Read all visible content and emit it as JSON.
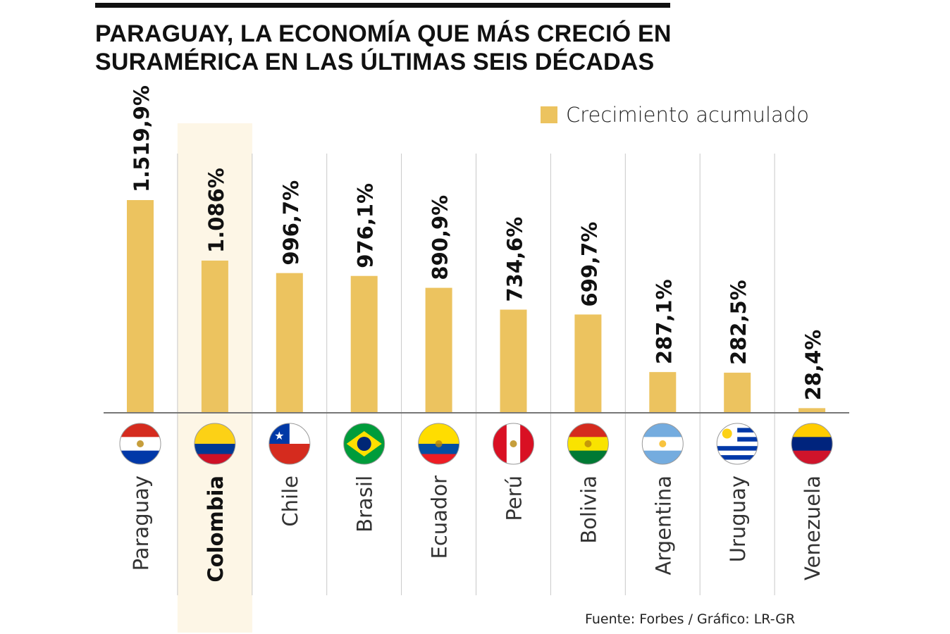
{
  "title_lines": [
    "PARAGUAY, LA ECONOMÍA QUE MÁS CRECIÓ EN",
    "SURAMÉRICA EN LAS ÚLTIMAS SEIS DÉCADAS"
  ],
  "source": "Fuente: Forbes / Gráfico: LR-GR",
  "colors": {
    "bar": "#ecc35f",
    "highlight": "#fdf6e6",
    "divider": "#c8c8c8",
    "axis": "#777777"
  },
  "chart_data": {
    "type": "bar",
    "title": "PARAGUAY, LA ECONOMÍA QUE MÁS CRECIÓ EN SURAMÉRICA EN LAS ÚLTIMAS SEIS DÉCADAS",
    "xlabel": "",
    "ylabel": "",
    "ylim": [
      0,
      1520
    ],
    "grid": false,
    "legend": {
      "entries": [
        "Crecimiento acumulado"
      ],
      "placement": "top-right"
    },
    "highlight": "Colombia",
    "categories": [
      "Paraguay",
      "Colombia",
      "Chile",
      "Brasil",
      "Ecuador",
      "Perú",
      "Bolivia",
      "Argentina",
      "Uruguay",
      "Venezuela"
    ],
    "series": [
      {
        "name": "Crecimiento acumulado",
        "values": [
          1519.9,
          1086,
          996.7,
          976.1,
          890.9,
          734.6,
          699.7,
          287.1,
          282.5,
          28.4
        ],
        "labels": [
          "1.519,9%",
          "1.086%",
          "996,7%",
          "976,1%",
          "890,9%",
          "734,6%",
          "699,7%",
          "287,1%",
          "282,5%",
          "28,4%"
        ]
      }
    ],
    "flags": [
      "paraguay-flag",
      "colombia-flag",
      "chile-flag",
      "brazil-flag",
      "ecuador-flag",
      "peru-flag",
      "bolivia-flag",
      "argentina-flag",
      "uruguay-flag",
      "venezuela-flag"
    ]
  }
}
